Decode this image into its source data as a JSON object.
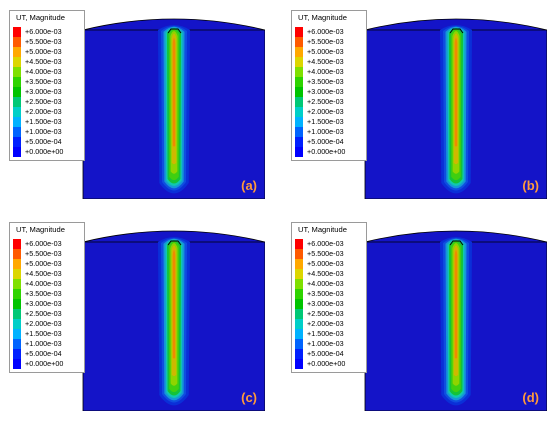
{
  "legend": {
    "title": "UT, Magnitude",
    "levels": [
      "+6.000e-03",
      "+5.500e-03",
      "+5.000e-03",
      "+4.500e-03",
      "+4.000e-03",
      "+3.500e-03",
      "+3.000e-03",
      "+2.500e-03",
      "+2.000e-03",
      "+1.500e-03",
      "+1.000e-03",
      "+5.000e-04",
      "+0.000e+00"
    ],
    "colors": [
      "#ff0000",
      "#ff5a00",
      "#ffa800",
      "#dcd600",
      "#7fe000",
      "#2ed400",
      "#00c400",
      "#00c876",
      "#00cfc8",
      "#00b2ff",
      "#0064ff",
      "#0020ff",
      "#0000ff"
    ]
  },
  "panels": [
    {
      "id": "a",
      "label": "(a)"
    },
    {
      "id": "b",
      "label": "(b)"
    },
    {
      "id": "c",
      "label": "(c)"
    },
    {
      "id": "d",
      "label": "(d)"
    }
  ]
}
